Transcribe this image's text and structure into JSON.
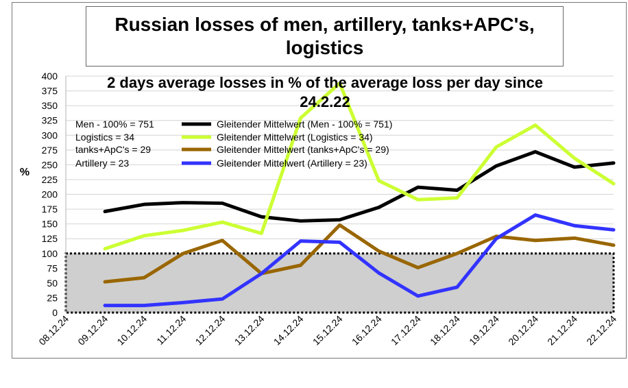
{
  "chart_data": {
    "type": "line",
    "title": "Russian losses of men, artillery, tanks+APC's, logistics",
    "subtitle_line1": "2 days average losses in % of the average loss per day since",
    "subtitle_line2": "24.2.22",
    "ylabel": "%",
    "ylim": [
      0,
      400
    ],
    "yticks": [
      "0",
      "25",
      "50",
      "75",
      "100",
      "125",
      "150",
      "175",
      "200",
      "225",
      "250",
      "275",
      "300",
      "325",
      "350",
      "375",
      "400"
    ],
    "categories": [
      "08.12.24",
      "09.12.24",
      "10.12.24",
      "11.12.24",
      "12.12.24",
      "13.12.24",
      "14.12.24",
      "15.12.24",
      "16.12.24",
      "17.12.24",
      "18.12.24",
      "19.12.24",
      "20.12.24",
      "21.12.24",
      "22.12.24"
    ],
    "baseline_band": [
      0,
      100
    ],
    "notes": [
      "Men - 100% = 751",
      "Logistics = 34",
      "tanks+ApC's = 29",
      "Artillery  = 23"
    ],
    "series": [
      {
        "name": "Gleitender Mittelwert (Men - 100% = 751)",
        "color": "#000000",
        "values": [
          null,
          171,
          183,
          186,
          185,
          162,
          155,
          157,
          178,
          212,
          207,
          248,
          272,
          246,
          253
        ]
      },
      {
        "name": "Gleitender Mittelwert (Logistics = 34)",
        "color": "#ccff33",
        "values": [
          null,
          108,
          130,
          139,
          153,
          134,
          329,
          388,
          223,
          191,
          194,
          280,
          317,
          261,
          218
        ]
      },
      {
        "name": "Gleitender Mittelwert (tanks+ApC's = 29)",
        "color": "#996600",
        "values": [
          null,
          52,
          59,
          100,
          122,
          66,
          80,
          148,
          104,
          76,
          100,
          129,
          122,
          126,
          114
        ]
      },
      {
        "name": "Gleitender Mittelwert (Artillery  = 23)",
        "color": "#3333ff",
        "values": [
          null,
          12,
          12,
          17,
          23,
          66,
          121,
          119,
          67,
          28,
          43,
          125,
          165,
          147,
          140
        ]
      }
    ]
  }
}
